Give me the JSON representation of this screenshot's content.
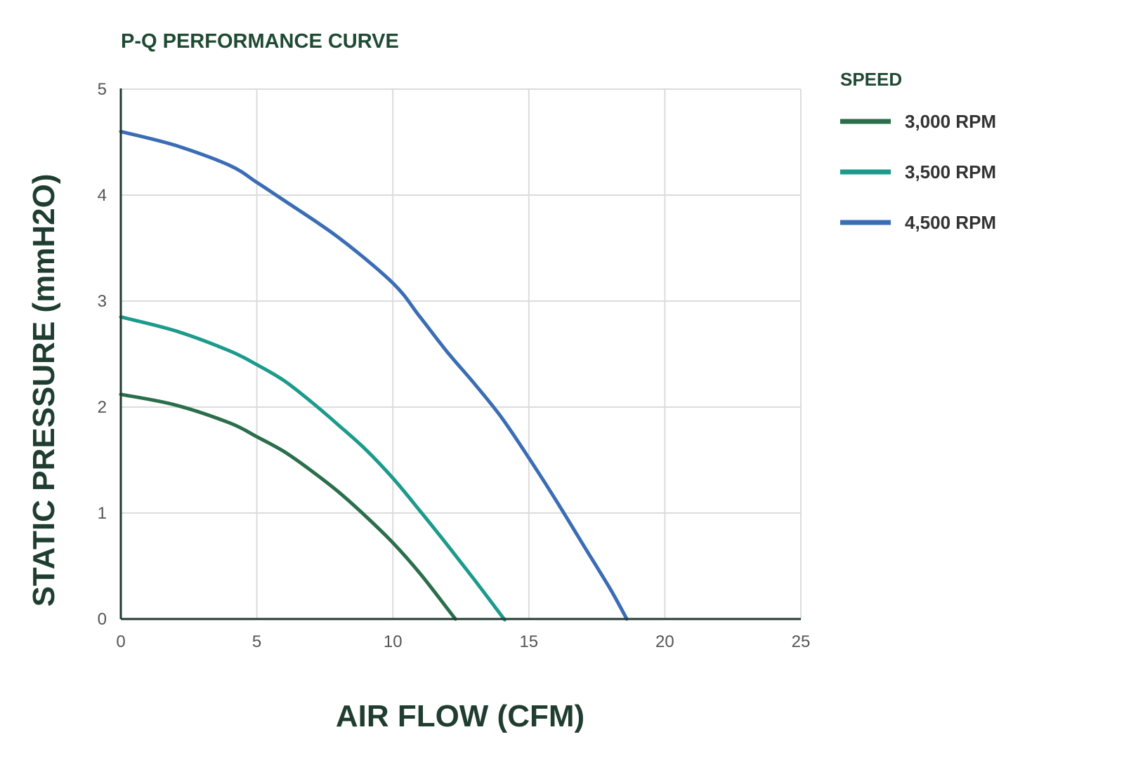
{
  "chart_data": {
    "type": "line",
    "title": "P-Q PERFORMANCE CURVE",
    "xlabel": "AIR FLOW (CFM)",
    "ylabel": "STATIC PRESSURE (mmH2O)",
    "xlim": [
      0,
      25
    ],
    "ylim": [
      0,
      5
    ],
    "xticks": [
      0,
      5,
      10,
      15,
      20,
      25
    ],
    "yticks": [
      0,
      1,
      2,
      3,
      4,
      5
    ],
    "grid": true,
    "legend": {
      "title": "SPEED",
      "placement": "right"
    },
    "series": [
      {
        "name": "3,000 RPM",
        "color": "#2a6e4b",
        "x": [
          0,
          2,
          4,
          5,
          6,
          7,
          8,
          9,
          10,
          11,
          12,
          12.3
        ],
        "y": [
          2.12,
          2.02,
          1.85,
          1.72,
          1.58,
          1.4,
          1.2,
          0.97,
          0.72,
          0.43,
          0.1,
          0
        ]
      },
      {
        "name": "3,500 RPM",
        "color": "#1c9a8c",
        "x": [
          0,
          2,
          4,
          5,
          6,
          7,
          8,
          9,
          10,
          11,
          12,
          13,
          14,
          14.1
        ],
        "y": [
          2.85,
          2.72,
          2.53,
          2.4,
          2.25,
          2.05,
          1.83,
          1.6,
          1.33,
          1.02,
          0.7,
          0.37,
          0.03,
          0
        ]
      },
      {
        "name": "4,500 RPM",
        "color": "#3a6db5",
        "x": [
          0,
          2,
          4,
          5,
          6,
          8,
          10,
          11,
          12,
          13,
          14,
          15,
          16,
          17,
          18,
          18.6
        ],
        "y": [
          4.6,
          4.47,
          4.28,
          4.12,
          3.95,
          3.6,
          3.17,
          2.85,
          2.52,
          2.22,
          1.9,
          1.52,
          1.12,
          0.7,
          0.28,
          0
        ]
      }
    ]
  }
}
